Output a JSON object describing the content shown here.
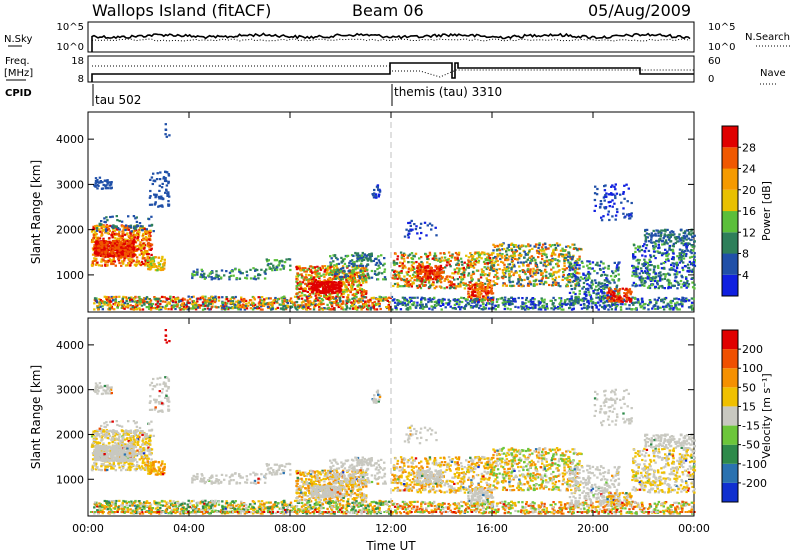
{
  "header": {
    "site": "Wallops Island (fitACF)",
    "beam": "Beam 06",
    "date": "05/Aug/2009"
  },
  "strip": {
    "left_labels": [
      "N.Sky",
      "Freq.",
      "[MHz]",
      "CPID"
    ],
    "right_labels": [
      "N.Search",
      "Nave"
    ],
    "sky_ticks": [
      "10^5",
      "10^0"
    ],
    "search_ticks": [
      "10^5",
      "10^0"
    ],
    "freq_ticks": [
      "18",
      "8"
    ],
    "nave_ticks": [
      "60",
      "0"
    ],
    "cpid_labels": [
      "tau 502",
      "themis (tau) 3310"
    ]
  },
  "xaxis": {
    "label": "Time UT",
    "ticks": [
      "00:00",
      "04:00",
      "08:00",
      "12:00",
      "16:00",
      "20:00",
      "00:00"
    ],
    "hours": [
      0,
      4,
      8,
      12,
      16,
      20,
      24
    ]
  },
  "chart_data": [
    {
      "type": "heatmap",
      "title": "Power",
      "xlabel": "Time UT",
      "ylabel": "Slant Range [km]",
      "xlim_hours": [
        0,
        24
      ],
      "ylim_km": [
        180,
        4600
      ],
      "yticks": [
        "1000",
        "2000",
        "3000",
        "4000"
      ],
      "ytick_values": [
        1000,
        2000,
        3000,
        4000
      ],
      "colorbar": {
        "label": "Power [dB]",
        "ticks": [
          "4",
          "8",
          "12",
          "16",
          "20",
          "24",
          "28"
        ],
        "colors": [
          "#1020e0",
          "#2050a8",
          "#2e7f5a",
          "#5bbf3a",
          "#e8c000",
          "#f59a00",
          "#f05800",
          "#e00000"
        ]
      }
    },
    {
      "type": "heatmap",
      "title": "Velocity",
      "xlabel": "Time UT",
      "ylabel": "Slant Range [km]",
      "xlim_hours": [
        0,
        24
      ],
      "ylim_km": [
        180,
        4600
      ],
      "yticks": [
        "1000",
        "2000",
        "3000",
        "4000"
      ],
      "ytick_values": [
        1000,
        2000,
        3000,
        4000
      ],
      "colorbar": {
        "label": "Velocity [m s⁻¹]",
        "ticks": [
          "200",
          "100",
          "50",
          "15",
          "-15",
          "-50",
          "-100",
          "-200"
        ],
        "colors": [
          "#1030d0",
          "#2a72b0",
          "#2e8a4a",
          "#6cc63a",
          "#c8c8c0",
          "#f0c000",
          "#f59000",
          "#f05000",
          "#e00000"
        ]
      }
    }
  ],
  "colors": {
    "panel_border": "#000000",
    "scatter_gray": "#c8c8c0",
    "divider_line": "#c0c0c0"
  }
}
